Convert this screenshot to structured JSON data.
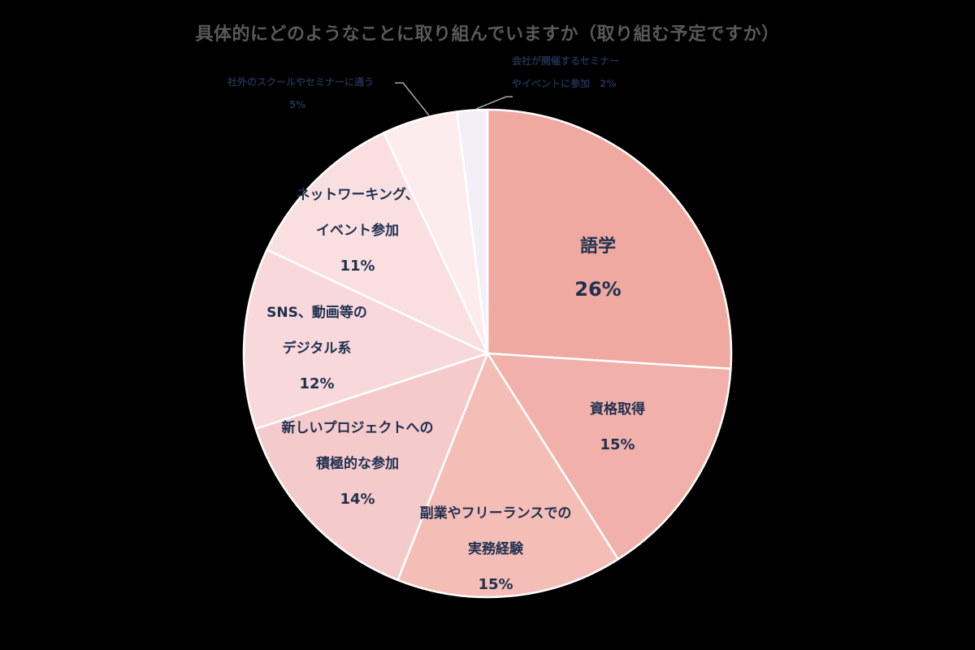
{
  "title": "具体的にどのようなことに取り組んでいますか（取り組む予定ですか）",
  "chart_data": {
    "type": "pie",
    "title": "具体的にどのようなことに取り組んでいますか（取り組む予定ですか）",
    "start_angle": "12 o'clock, clockwise",
    "categories": [
      "語学",
      "資格取得",
      "副業やフリーランスでの実務経験",
      "新しいプロジェクトへの積極的な参加",
      "SNS、動画等のデジタル系",
      "ネットワーキング、イベント参加",
      "社外のスクールやセミナーに通う",
      "会社が開催するセミナーやイベントに参加"
    ],
    "values": [
      26,
      15,
      15,
      14,
      12,
      11,
      5,
      2
    ],
    "unit": "%",
    "colors": [
      "#EFA9A0",
      "#F1B1AA",
      "#F4BDB6",
      "#F5CACA",
      "#F8D8DA",
      "#F9DFDF",
      "#FDECEE",
      "#F2F0F6"
    ],
    "legend": "none (data labels on slices)"
  },
  "labels": [
    {
      "lines": [
        "語学"
      ],
      "pct": "26%"
    },
    {
      "lines": [
        "資格取得"
      ],
      "pct": "15%"
    },
    {
      "lines": [
        "副業やフリーランスでの",
        "実務経験"
      ],
      "pct": "15%"
    },
    {
      "lines": [
        "新しいプロジェクトへの",
        "積極的な参加"
      ],
      "pct": "14%"
    },
    {
      "lines": [
        "SNS、動画等の",
        "デジタル系"
      ],
      "pct": "12%"
    },
    {
      "lines": [
        "ネットワーキング、",
        "イベント参加"
      ],
      "pct": "11%"
    },
    {
      "lines": [
        "社外のスクールやセミナーに通う"
      ],
      "pct": "5%"
    },
    {
      "lines": [
        "会社が開催するセミナー",
        "やイベントに参加　2%"
      ]
    }
  ]
}
